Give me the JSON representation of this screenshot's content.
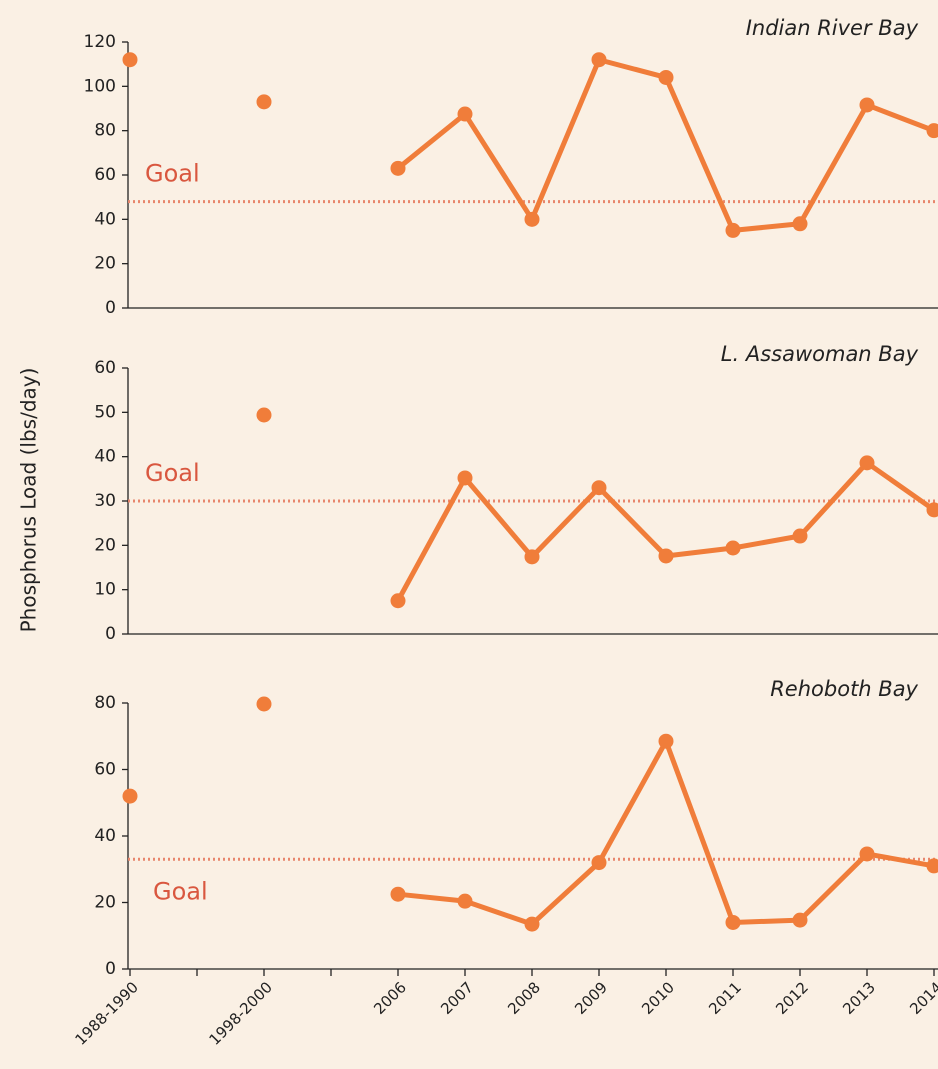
{
  "y_label": "Phosphorus Load (lbs/day)",
  "chart_data": [
    {
      "type": "line",
      "title": "Indian River Bay",
      "color": "#f07d3a",
      "values": [
        112,
        null,
        93,
        null,
        63,
        87.5,
        40,
        112,
        104,
        35,
        38,
        91.6,
        80
      ],
      "ylim": [
        0,
        120
      ],
      "yticks": [
        0,
        20,
        40,
        60,
        80,
        100,
        120
      ],
      "goal": {
        "label": "Goal",
        "value": 48,
        "color": "#e8866c"
      }
    },
    {
      "type": "line",
      "title": "L. Assawoman Bay",
      "color": "#f07d3a",
      "values": [
        null,
        null,
        49.4,
        null,
        7.5,
        35.2,
        17.4,
        33,
        17.6,
        19.4,
        22.1,
        38.6,
        28
      ],
      "ylim": [
        0,
        60
      ],
      "yticks": [
        0,
        10,
        20,
        30,
        40,
        50,
        60
      ],
      "goal": {
        "label": "Goal",
        "value": 30,
        "color": "#e8866c"
      }
    },
    {
      "type": "line",
      "title": "Rehoboth Bay",
      "color": "#f07d3a",
      "categories": [
        "1988-1990",
        null,
        "1998-2000",
        null,
        "2006",
        "2007",
        "2008",
        "2009",
        "2010",
        "2011",
        "2012",
        "2013",
        "2014"
      ],
      "values": [
        52,
        null,
        79.7,
        null,
        22.5,
        20.4,
        13.5,
        32,
        68.5,
        14,
        14.7,
        34.6,
        31
      ],
      "ylim": [
        0,
        80
      ],
      "yticks": [
        0,
        20,
        40,
        60,
        80
      ],
      "goal": {
        "label": "Goal",
        "value": 33,
        "color": "#e8866c"
      }
    }
  ]
}
